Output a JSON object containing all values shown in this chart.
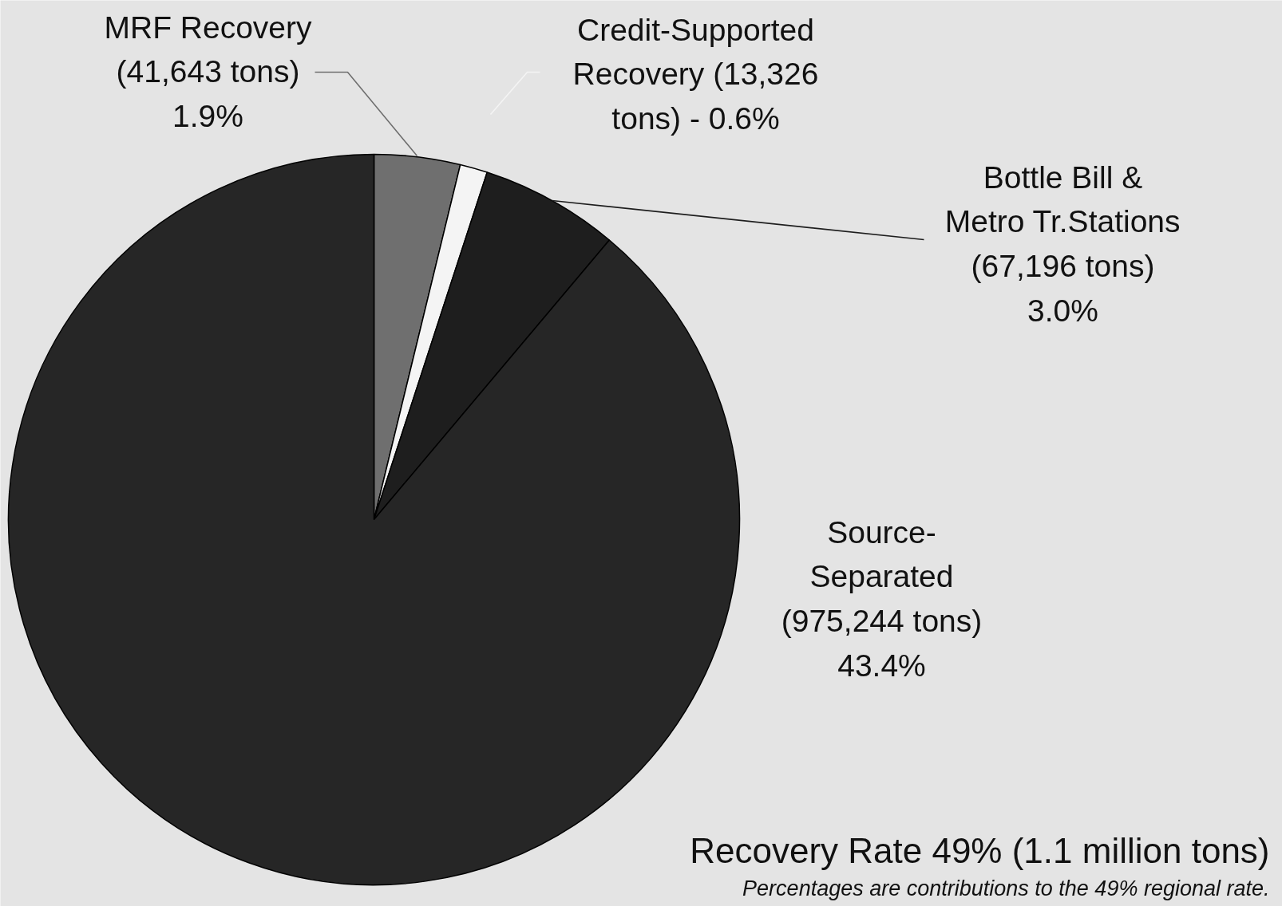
{
  "chart_data": {
    "type": "pie",
    "categories": [
      "MRF Recovery",
      "Credit-Supported Recovery",
      "Bottle Bill & Metro Tr.Stations",
      "Source-Separated"
    ],
    "values": [
      41643,
      13326,
      67196,
      975244
    ],
    "value_labels": [
      "(41,643 tons) 1.9%",
      "(13,326 tons) - 0.6%",
      "(67,196 tons) 3.0%",
      "(975,244 tons) 43.4%"
    ],
    "colors": [
      "#6f6f6f",
      "#f4f4f4",
      "#1e1e1e",
      "#262626"
    ],
    "annotations": [
      "Recovery Rate 49% (1.1 million tons)",
      "Percentages are contributions to the 49% regional rate."
    ]
  }
}
